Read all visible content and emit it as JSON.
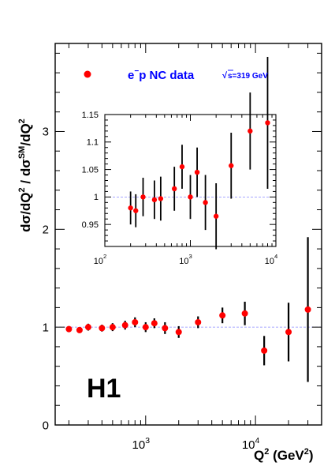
{
  "chart_data": [
    {
      "id": "main",
      "type": "scatter",
      "ylabel": "dσ/dQ² / dσ^SM/dQ²",
      "xlabel": "Q² (GeV²)",
      "xscale": "log",
      "xlim": [
        150,
        40000
      ],
      "ylim": [
        0,
        3.9
      ],
      "yticks": [
        0,
        1,
        2,
        3
      ],
      "xtick_labels": [
        {
          "base": "10",
          "exp": "3"
        },
        {
          "base": "10",
          "exp": "4"
        }
      ],
      "reference_line": 1,
      "experiment_label": "H1",
      "legend": {
        "marker_color": "#ff0000",
        "prefix": "e",
        "superscript": "−",
        "label": "p NC data",
        "energy": "s=319 GeV",
        "position": "top-left"
      },
      "series": [
        {
          "color": "#ff0000",
          "points": [
            {
              "x": 200,
              "y": 0.98,
              "err": 0.03
            },
            {
              "x": 250,
              "y": 0.97,
              "err": 0.03
            },
            {
              "x": 300,
              "y": 1.0,
              "err": 0.035
            },
            {
              "x": 400,
              "y": 0.99,
              "err": 0.035
            },
            {
              "x": 500,
              "y": 1.0,
              "err": 0.04
            },
            {
              "x": 650,
              "y": 1.02,
              "err": 0.045
            },
            {
              "x": 800,
              "y": 1.05,
              "err": 0.05
            },
            {
              "x": 1000,
              "y": 1.0,
              "err": 0.05
            },
            {
              "x": 1200,
              "y": 1.04,
              "err": 0.05
            },
            {
              "x": 1500,
              "y": 0.99,
              "err": 0.06
            },
            {
              "x": 2000,
              "y": 0.95,
              "err": 0.06
            },
            {
              "x": 3000,
              "y": 1.05,
              "err": 0.06
            },
            {
              "x": 5000,
              "y": 1.12,
              "err": 0.08
            },
            {
              "x": 8000,
              "y": 1.14,
              "err": 0.12
            },
            {
              "x": 12000,
              "y": 0.76,
              "err": 0.15
            },
            {
              "x": 20000,
              "y": 0.95,
              "err": 0.3
            },
            {
              "x": 30000,
              "y": 1.18,
              "err": 0.74
            }
          ]
        }
      ]
    },
    {
      "id": "inset",
      "type": "scatter",
      "xscale": "log",
      "xlim": [
        100,
        10000
      ],
      "ylim": [
        0.91,
        1.15
      ],
      "ytick_labels": [
        "0.95",
        "1",
        "1.05",
        "1.1",
        "1.15"
      ],
      "yticks": [
        0.95,
        1.0,
        1.05,
        1.1,
        1.15
      ],
      "xtick_labels": [
        {
          "base": "10",
          "exp": "2"
        },
        {
          "base": "10",
          "exp": "3"
        },
        {
          "base": "10",
          "exp": "4"
        }
      ],
      "reference_line": 1,
      "series": [
        {
          "color": "#ff0000",
          "points": [
            {
              "x": 200,
              "y": 0.98,
              "err": 0.03
            },
            {
              "x": 230,
              "y": 0.975,
              "err": 0.03
            },
            {
              "x": 280,
              "y": 1.0,
              "err": 0.035
            },
            {
              "x": 380,
              "y": 0.995,
              "err": 0.035
            },
            {
              "x": 450,
              "y": 0.997,
              "err": 0.04
            },
            {
              "x": 650,
              "y": 1.015,
              "err": 0.04
            },
            {
              "x": 800,
              "y": 1.055,
              "err": 0.04
            },
            {
              "x": 1000,
              "y": 1.0,
              "err": 0.04
            },
            {
              "x": 1200,
              "y": 1.045,
              "err": 0.045
            },
            {
              "x": 1500,
              "y": 0.99,
              "err": 0.05
            },
            {
              "x": 2000,
              "y": 0.965,
              "err": 0.06
            },
            {
              "x": 3000,
              "y": 1.057,
              "err": 0.06
            },
            {
              "x": 5000,
              "y": 1.12,
              "err": 0.07
            },
            {
              "x": 8000,
              "y": 1.135,
              "err": 0.12
            }
          ]
        }
      ]
    }
  ]
}
